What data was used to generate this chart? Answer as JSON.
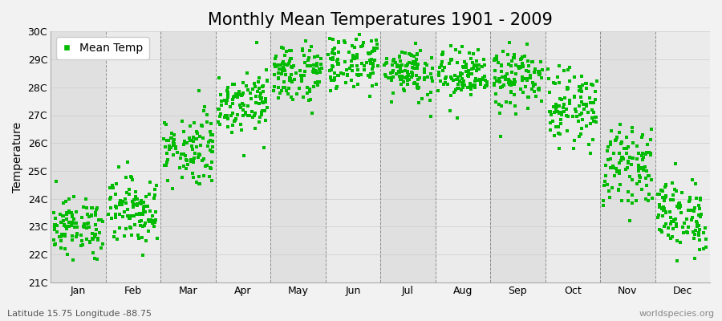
{
  "title": "Monthly Mean Temperatures 1901 - 2009",
  "ylabel": "Temperature",
  "xlabel_note": "Latitude 15.75 Longitude -88.75",
  "watermark": "worldspecies.org",
  "legend_label": "Mean Temp",
  "marker_color": "#00bb00",
  "marker_size": 3.5,
  "ylim": [
    21,
    30
  ],
  "yticks": [
    21,
    22,
    23,
    24,
    25,
    26,
    27,
    28,
    29,
    30
  ],
  "ytick_labels": [
    "21C",
    "22C",
    "23C",
    "24C",
    "25C",
    "26C",
    "27C",
    "28C",
    "29C",
    "30C"
  ],
  "months": [
    "Jan",
    "Feb",
    "Mar",
    "Apr",
    "May",
    "Jun",
    "Jul",
    "Aug",
    "Sep",
    "Oct",
    "Nov",
    "Dec"
  ],
  "month_means": [
    23.0,
    23.6,
    25.8,
    27.5,
    28.5,
    28.9,
    28.6,
    28.4,
    28.3,
    27.3,
    25.2,
    23.4
  ],
  "month_stds": [
    0.5,
    0.6,
    0.65,
    0.55,
    0.55,
    0.52,
    0.48,
    0.48,
    0.55,
    0.65,
    0.65,
    0.65
  ],
  "n_years": 109,
  "background_color": "#f2f2f2",
  "plot_bg_light": "#ebebeb",
  "plot_bg_dark": "#e0e0e0",
  "grid_color": "#666666",
  "title_fontsize": 15,
  "axis_fontsize": 10,
  "tick_fontsize": 9,
  "note_fontsize": 8
}
